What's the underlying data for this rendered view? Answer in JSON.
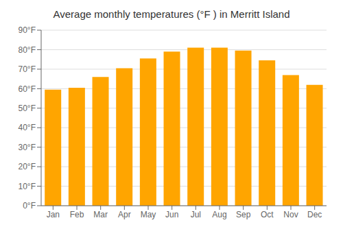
{
  "chart_data": {
    "type": "bar",
    "title": "Average monthly temperatures (°F ) in Merritt Island",
    "categories": [
      "Jan",
      "Feb",
      "Mar",
      "Apr",
      "May",
      "Jun",
      "Jul",
      "Aug",
      "Sep",
      "Oct",
      "Nov",
      "Dec"
    ],
    "values": [
      59.5,
      60.5,
      66,
      70.5,
      75.5,
      79,
      81,
      81,
      79.5,
      74.5,
      67,
      62
    ],
    "color": "#FFA500",
    "ylim": [
      0,
      90
    ],
    "yticks": [
      {
        "value": 0,
        "label": "0°F"
      },
      {
        "value": 10,
        "label": "10°F"
      },
      {
        "value": 20,
        "label": "20°F"
      },
      {
        "value": 30,
        "label": "30°F"
      },
      {
        "value": 40,
        "label": "40°F"
      },
      {
        "value": 50,
        "label": "50°F"
      },
      {
        "value": 60,
        "label": "60°F"
      },
      {
        "value": 70,
        "label": "70°F"
      },
      {
        "value": 80,
        "label": "80°F"
      },
      {
        "value": 90,
        "label": "90°F"
      }
    ],
    "grid": true
  }
}
